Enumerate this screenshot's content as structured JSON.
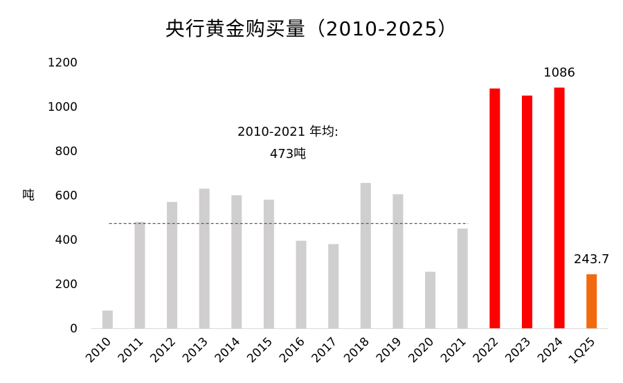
{
  "chart_data": {
    "type": "bar",
    "title": "央行黄金购买量（2010-2025）",
    "ylabel": "吨",
    "ylim": [
      0,
      1200
    ],
    "yticks": [
      0,
      200,
      400,
      600,
      800,
      1000,
      1200
    ],
    "categories": [
      "2010",
      "2011",
      "2012",
      "2013",
      "2014",
      "2015",
      "2016",
      "2017",
      "2018",
      "2019",
      "2020",
      "2021",
      "2022",
      "2023",
      "2024",
      "1Q25"
    ],
    "values": [
      80,
      480,
      570,
      630,
      600,
      580,
      395,
      380,
      656,
      605,
      255,
      450,
      1082,
      1050,
      1086,
      243.7
    ],
    "bar_colors": [
      "#d0cece",
      "#d0cece",
      "#d0cece",
      "#d0cece",
      "#d0cece",
      "#d0cece",
      "#d0cece",
      "#d0cece",
      "#d0cece",
      "#d0cece",
      "#d0cece",
      "#d0cece",
      "#ff0000",
      "#ff0000",
      "#ff0000",
      "#f26a10"
    ],
    "data_labels": [
      {
        "category": "2024",
        "text": "1086"
      },
      {
        "category": "1Q25",
        "text": "243.7"
      }
    ],
    "average_line": {
      "value": 473,
      "from": "2011",
      "to": "2021",
      "label_line1": "2010-2021 年均:",
      "label_line2": "473吨",
      "color": "#595959"
    },
    "grid": false,
    "legend": "none"
  }
}
